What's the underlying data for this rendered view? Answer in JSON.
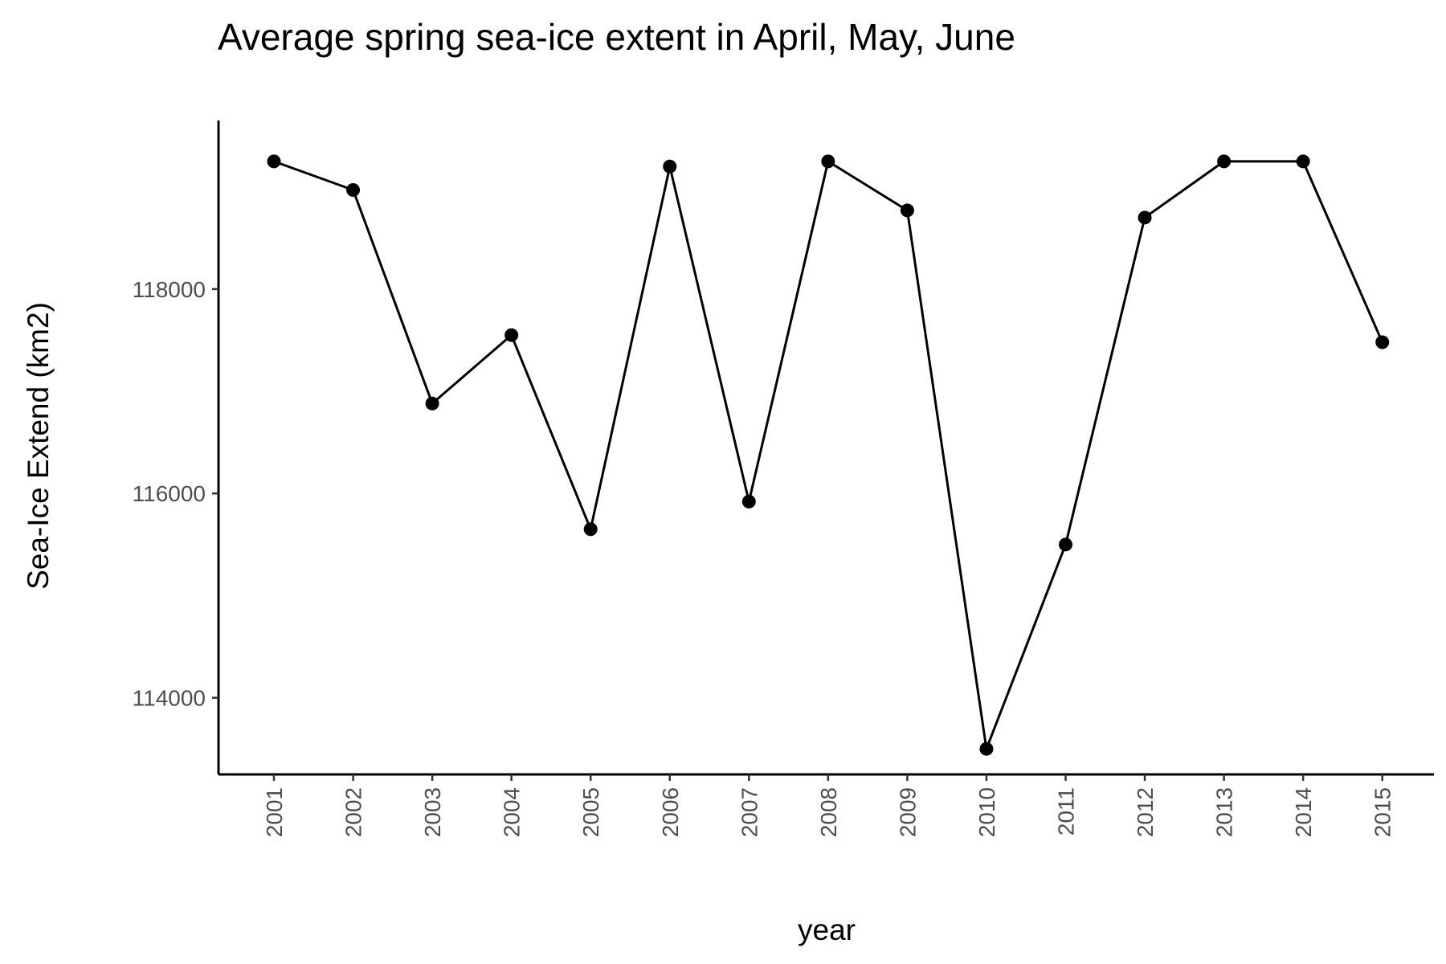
{
  "chart_data": {
    "type": "line",
    "title": "Average spring sea-ice extent in April, May, June",
    "xlabel": "year",
    "ylabel": "Sea-Ice Extend (km2)",
    "categories": [
      "2001",
      "2002",
      "2003",
      "2004",
      "2005",
      "2006",
      "2007",
      "2008",
      "2009",
      "2010",
      "2011",
      "2012",
      "2013",
      "2014",
      "2015"
    ],
    "series": [
      {
        "values": [
          119250,
          118970,
          116880,
          117550,
          115650,
          119200,
          115920,
          119250,
          118770,
          113500,
          115500,
          118700,
          119250,
          119250,
          117480
        ]
      }
    ],
    "yticks": [
      "114000",
      "116000",
      "118000"
    ],
    "ylim": [
      113250,
      119650
    ],
    "grid": false,
    "legend": "none",
    "colors": {
      "line": "#000000",
      "point": "#000000"
    }
  }
}
